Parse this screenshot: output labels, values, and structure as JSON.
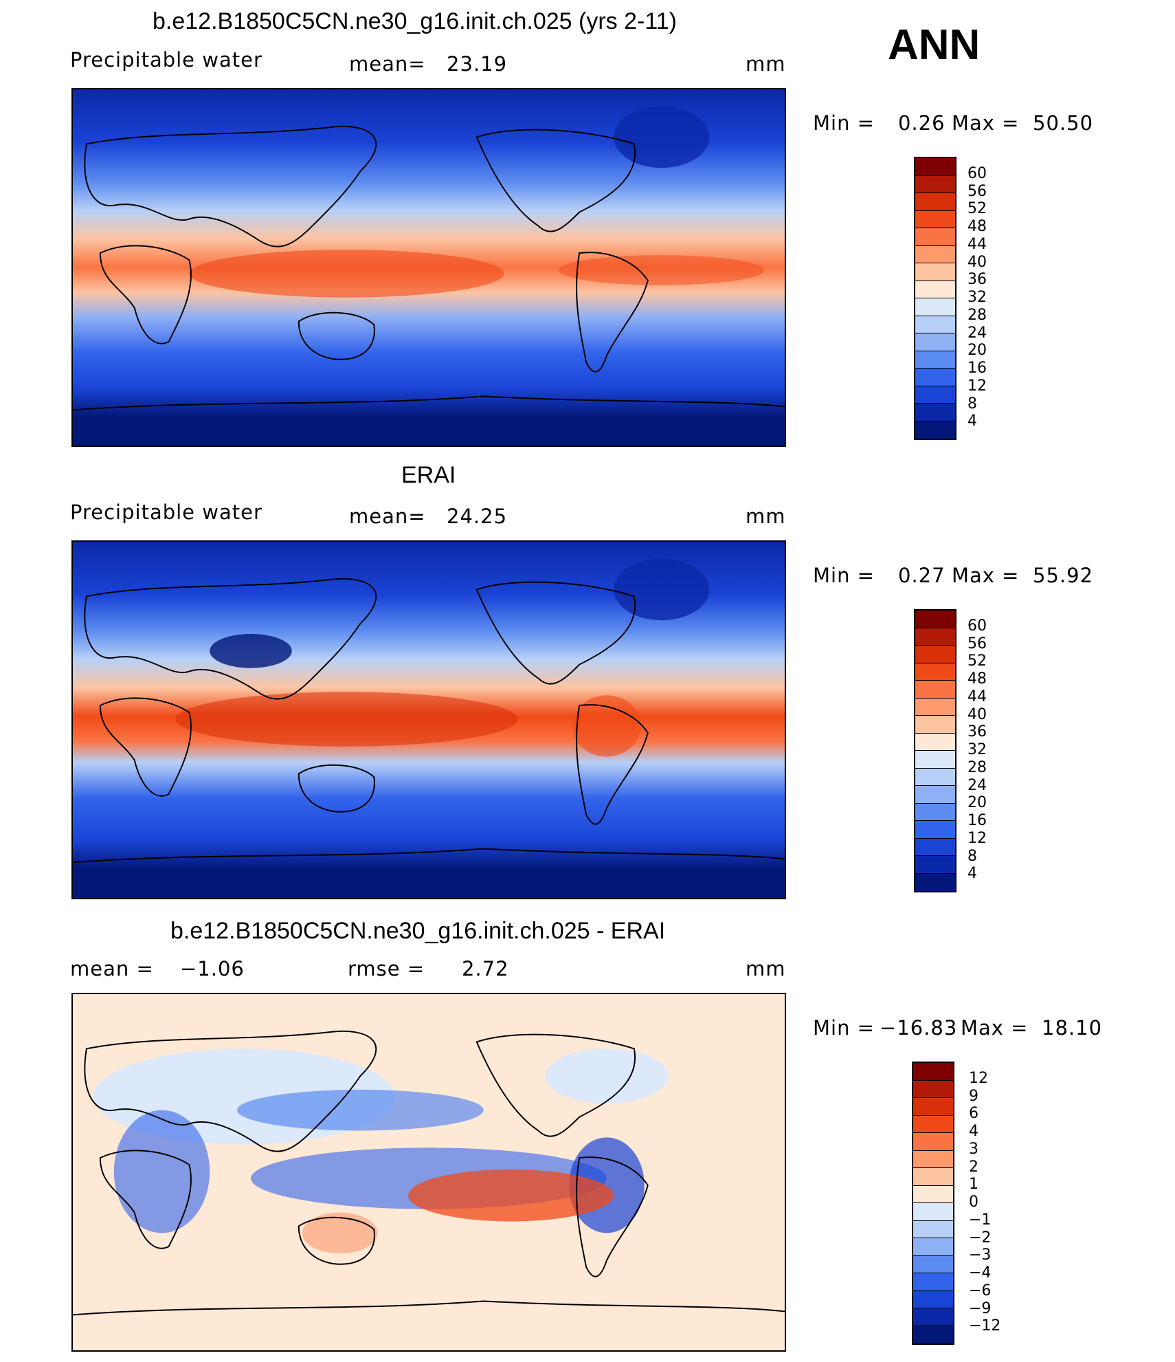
{
  "season": "ANN",
  "panels": [
    {
      "title": "b.e12.B1850C5CN.ne30_g16.init.ch.025 (yrs 2-11)",
      "variable": "Precipitable  water",
      "mean_label": "mean=",
      "mean_value": "23.19",
      "units": "mm",
      "min_label": "Min  =",
      "min_value": "0.26",
      "max_label": "Max  =",
      "max_value": "50.50",
      "field": "model"
    },
    {
      "title": "ERAI",
      "variable": "Precipitable  water",
      "mean_label": "mean=",
      "mean_value": "24.25",
      "units": "mm",
      "min_label": "Min  =",
      "min_value": "0.27",
      "max_label": "Max  =",
      "max_value": "55.92",
      "field": "obs"
    },
    {
      "title": "b.e12.B1850C5CN.ne30_g16.init.ch.025 - ERAI",
      "mean_label": "mean  =",
      "mean_value": "−1.06",
      "rmse_label": "rmse  =",
      "rmse_value": "2.72",
      "units": "mm",
      "min_label": "Min  =",
      "min_value": "−16.83",
      "max_label": "Max  =",
      "max_value": "18.10",
      "field": "diff"
    }
  ],
  "colorbars": {
    "absolute": {
      "labels": [
        "60",
        "56",
        "52",
        "48",
        "44",
        "40",
        "36",
        "32",
        "28",
        "24",
        "20",
        "16",
        "12",
        "8",
        "4"
      ],
      "colors": [
        "#7f0000",
        "#b01a06",
        "#d83008",
        "#f04a18",
        "#fa7443",
        "#fc9a6c",
        "#fdc4a2",
        "#fee8d6",
        "#dbe9fa",
        "#b7d0f7",
        "#8eb0f5",
        "#5c8cf0",
        "#3264eb",
        "#1a44d6",
        "#0b28a8",
        "#031778"
      ]
    },
    "difference": {
      "labels": [
        "12",
        "9",
        "6",
        "4",
        "3",
        "2",
        "1",
        "0",
        "−1",
        "−2",
        "−3",
        "−4",
        "−6",
        "−9",
        "−12"
      ],
      "colors": [
        "#7f0000",
        "#b01a06",
        "#d83008",
        "#f04a18",
        "#fa7443",
        "#fc9a6c",
        "#fdc4a2",
        "#fee8d6",
        "#dbe9fa",
        "#b7d0f7",
        "#8eb0f5",
        "#5c8cf0",
        "#3264eb",
        "#1a44d6",
        "#0b28a8",
        "#031778"
      ]
    }
  }
}
